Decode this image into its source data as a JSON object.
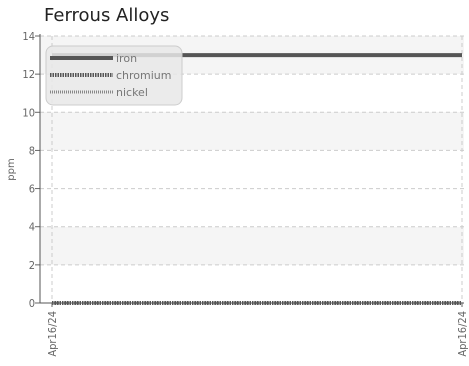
{
  "chart_data": {
    "type": "line",
    "title": "Ferrous Alloys",
    "xlabel": "",
    "ylabel": "ppm",
    "ylim": [
      0,
      14
    ],
    "yticks": [
      0,
      2,
      4,
      6,
      8,
      10,
      12,
      14
    ],
    "xticks": [
      "Apr16/24",
      "Apr16/24"
    ],
    "grid": true,
    "legend_position": "top-left",
    "series": [
      {
        "name": "iron",
        "values": [
          13,
          13
        ],
        "color": "#555555",
        "style": "solid"
      },
      {
        "name": "chromium",
        "values": [
          0,
          0
        ],
        "color": "#555555",
        "style": "dotted-thick"
      },
      {
        "name": "nickel",
        "values": [
          0,
          0
        ],
        "color": "#888888",
        "style": "dotted-thin"
      }
    ]
  }
}
